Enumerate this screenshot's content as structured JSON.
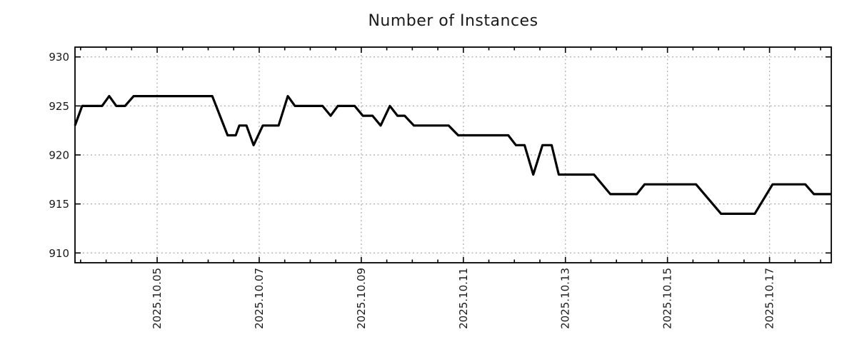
{
  "title": "Number of Instances",
  "chart_data": {
    "type": "line",
    "title": "Number of Instances",
    "xlabel": "",
    "ylabel": "",
    "legend": "none",
    "grid": "dotted, on major ticks only",
    "x_axis": {
      "kind": "date",
      "range_days_october_2025": [
        3.39,
        18.21
      ],
      "minor_tick_step_days": 0.5,
      "label_rotation_deg": 90,
      "major_ticks": [
        {
          "day": 5,
          "label": "2025.10.05"
        },
        {
          "day": 7,
          "label": "2025.10.07"
        },
        {
          "day": 9,
          "label": "2025.10.09"
        },
        {
          "day": 11,
          "label": "2025.10.11"
        },
        {
          "day": 13,
          "label": "2025.10.13"
        },
        {
          "day": 15,
          "label": "2025.10.15"
        },
        {
          "day": 17,
          "label": "2025.10.17"
        }
      ]
    },
    "y_axis": {
      "range": [
        909,
        931
      ],
      "ticks": [
        910,
        915,
        920,
        925,
        930
      ],
      "tick_labels": [
        "910",
        "915",
        "920",
        "925",
        "930"
      ]
    },
    "series": [
      {
        "name": "Number of Instances",
        "color": "#000000",
        "points_day_value": [
          [
            3.39,
            923
          ],
          [
            3.53,
            925
          ],
          [
            3.92,
            925
          ],
          [
            4.06,
            926
          ],
          [
            4.2,
            925
          ],
          [
            4.37,
            925
          ],
          [
            4.54,
            926
          ],
          [
            6.08,
            926
          ],
          [
            6.38,
            922
          ],
          [
            6.54,
            922
          ],
          [
            6.61,
            923
          ],
          [
            6.75,
            923
          ],
          [
            6.89,
            921
          ],
          [
            7.07,
            923
          ],
          [
            7.38,
            923
          ],
          [
            7.56,
            926
          ],
          [
            7.7,
            925
          ],
          [
            8.24,
            925
          ],
          [
            8.4,
            924
          ],
          [
            8.54,
            925
          ],
          [
            8.87,
            925
          ],
          [
            9.03,
            924
          ],
          [
            9.22,
            924
          ],
          [
            9.38,
            923
          ],
          [
            9.56,
            925
          ],
          [
            9.71,
            924
          ],
          [
            9.85,
            924
          ],
          [
            10.03,
            923
          ],
          [
            10.71,
            923
          ],
          [
            10.9,
            922
          ],
          [
            11.88,
            922
          ],
          [
            12.03,
            921
          ],
          [
            12.2,
            921
          ],
          [
            12.37,
            918
          ],
          [
            12.55,
            921
          ],
          [
            12.73,
            921
          ],
          [
            12.87,
            918
          ],
          [
            13.56,
            918
          ],
          [
            13.88,
            916
          ],
          [
            14.4,
            916
          ],
          [
            14.55,
            917
          ],
          [
            15.56,
            917
          ],
          [
            16.05,
            914
          ],
          [
            16.71,
            914
          ],
          [
            17.06,
            917
          ],
          [
            17.7,
            917
          ],
          [
            17.87,
            916
          ],
          [
            18.21,
            916
          ]
        ]
      }
    ]
  },
  "style": {
    "line_color": "#000000",
    "grid_color": "#ababab",
    "border_color": "#000000",
    "text_color": "#1a1a1a",
    "background": "#ffffff"
  }
}
